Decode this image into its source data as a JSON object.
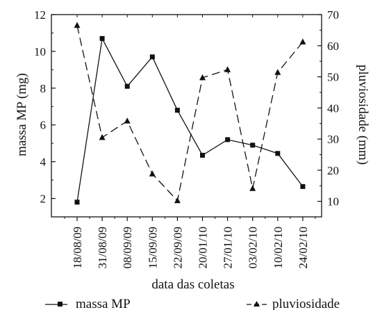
{
  "chart_data": {
    "type": "line",
    "categories": [
      "18/08/09",
      "31/08/09",
      "08/09/09",
      "15/09/09",
      "22/09/09",
      "20/01/10",
      "27/01/10",
      "03/02/10",
      "10/02/10",
      "24/02/10"
    ],
    "xlabel": "data das coletas",
    "y_left": {
      "label": "massa MP (mg)",
      "range": [
        1,
        12
      ],
      "ticks": [
        2,
        4,
        6,
        8,
        10,
        12
      ]
    },
    "y_right": {
      "label": "pluviosidade (mm)",
      "range": [
        5,
        70
      ],
      "ticks": [
        10,
        20,
        30,
        40,
        50,
        60,
        70
      ]
    },
    "grid": false,
    "legend_placement": "bottom",
    "series": [
      {
        "name": "massa MP",
        "axis": "left",
        "marker": "square",
        "line_style": "solid",
        "color": "#111111",
        "values": [
          1.8,
          10.7,
          8.1,
          9.7,
          6.8,
          4.35,
          5.2,
          4.9,
          4.45,
          2.65
        ]
      },
      {
        "name": "pluviosidade",
        "axis": "right",
        "marker": "triangle",
        "line_style": "dashed",
        "color": "#111111",
        "values": [
          66.5,
          30.5,
          35.8,
          18.8,
          10.2,
          49.7,
          52.3,
          14.1,
          51.4,
          61.2
        ]
      }
    ]
  }
}
